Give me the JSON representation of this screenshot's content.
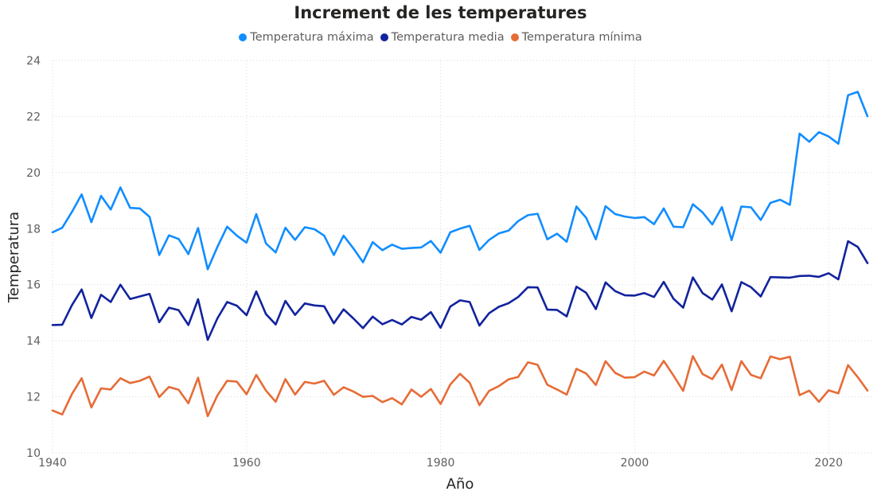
{
  "chart_data": {
    "type": "line",
    "title": "Increment de les temperatures",
    "xlabel": "Año",
    "ylabel": "Temperatura",
    "xlim": [
      1940,
      2024
    ],
    "ylim": [
      10,
      24
    ],
    "xticks": [
      1940,
      1960,
      1980,
      2000,
      2020
    ],
    "yticks": [
      10,
      12,
      14,
      16,
      18,
      20,
      22,
      24
    ],
    "grid": true,
    "legend_position": "top-center",
    "x": [
      1940,
      1941,
      1942,
      1943,
      1944,
      1945,
      1946,
      1947,
      1948,
      1949,
      1950,
      1951,
      1952,
      1953,
      1954,
      1955,
      1956,
      1957,
      1958,
      1959,
      1960,
      1961,
      1962,
      1963,
      1964,
      1965,
      1966,
      1967,
      1968,
      1969,
      1970,
      1971,
      1972,
      1973,
      1974,
      1975,
      1976,
      1977,
      1978,
      1979,
      1980,
      1981,
      1982,
      1983,
      1984,
      1985,
      1986,
      1987,
      1988,
      1989,
      1990,
      1991,
      1992,
      1993,
      1994,
      1995,
      1996,
      1997,
      1998,
      1999,
      2000,
      2001,
      2002,
      2003,
      2004,
      2005,
      2006,
      2007,
      2008,
      2009,
      2010,
      2011,
      2012,
      2013,
      2014,
      2015,
      2016,
      2017,
      2018,
      2019,
      2020,
      2021,
      2022,
      2023,
      2024
    ],
    "series": [
      {
        "name": "Temperatura máxima",
        "color": "#118dff",
        "values": [
          17.87,
          18.03,
          18.6,
          19.22,
          18.23,
          19.17,
          18.68,
          19.47,
          18.74,
          18.72,
          18.42,
          17.06,
          17.76,
          17.63,
          17.09,
          18.02,
          16.55,
          17.35,
          18.07,
          17.75,
          17.5,
          18.52,
          17.47,
          17.15,
          18.03,
          17.6,
          18.05,
          17.98,
          17.75,
          17.06,
          17.75,
          17.3,
          16.8,
          17.52,
          17.23,
          17.43,
          17.28,
          17.31,
          17.33,
          17.56,
          17.14,
          17.87,
          18.0,
          18.1,
          17.24,
          17.6,
          17.83,
          17.93,
          18.27,
          18.48,
          18.53,
          17.62,
          17.82,
          17.53,
          18.79,
          18.39,
          17.62,
          18.8,
          18.52,
          18.43,
          18.38,
          18.41,
          18.16,
          18.72,
          18.07,
          18.05,
          18.87,
          18.58,
          18.15,
          18.77,
          17.59,
          18.79,
          18.76,
          18.31,
          18.92,
          19.03,
          18.85,
          21.39,
          21.1,
          21.44,
          21.29,
          21.03,
          22.76,
          22.88,
          22.01
        ]
      },
      {
        "name": "Temperatura media",
        "color": "#12239e",
        "values": [
          14.56,
          14.57,
          15.27,
          15.83,
          14.81,
          15.64,
          15.38,
          16.0,
          15.49,
          15.58,
          15.67,
          14.66,
          15.18,
          15.09,
          14.56,
          15.48,
          14.03,
          14.8,
          15.38,
          15.25,
          14.91,
          15.76,
          14.95,
          14.58,
          15.42,
          14.92,
          15.33,
          15.26,
          15.23,
          14.62,
          15.12,
          14.8,
          14.45,
          14.86,
          14.59,
          14.74,
          14.58,
          14.85,
          14.75,
          15.02,
          14.46,
          15.22,
          15.44,
          15.38,
          14.54,
          14.98,
          15.21,
          15.34,
          15.56,
          15.91,
          15.9,
          15.11,
          15.1,
          14.87,
          15.93,
          15.71,
          15.13,
          16.08,
          15.77,
          15.62,
          15.61,
          15.7,
          15.56,
          16.1,
          15.5,
          15.18,
          16.26,
          15.7,
          15.47,
          16.01,
          15.05,
          16.09,
          15.91,
          15.58,
          16.27,
          16.26,
          16.25,
          16.31,
          16.32,
          16.28,
          16.41,
          16.19,
          17.55,
          17.35,
          16.77
        ]
      },
      {
        "name": "Temperatura mínima",
        "color": "#e66c37",
        "values": [
          11.51,
          11.37,
          12.1,
          12.66,
          11.62,
          12.3,
          12.26,
          12.66,
          12.49,
          12.57,
          12.72,
          11.99,
          12.35,
          12.25,
          11.77,
          12.68,
          11.31,
          12.05,
          12.57,
          12.54,
          12.09,
          12.78,
          12.22,
          11.82,
          12.63,
          12.08,
          12.53,
          12.47,
          12.57,
          12.07,
          12.34,
          12.19,
          12.0,
          12.03,
          11.81,
          11.95,
          11.73,
          12.26,
          12.0,
          12.28,
          11.74,
          12.44,
          12.82,
          12.5,
          11.7,
          12.21,
          12.38,
          12.62,
          12.71,
          13.23,
          13.14,
          12.43,
          12.26,
          12.08,
          13.0,
          12.83,
          12.42,
          13.27,
          12.85,
          12.68,
          12.7,
          12.9,
          12.76,
          13.28,
          12.76,
          12.21,
          13.45,
          12.81,
          12.63,
          13.15,
          12.24,
          13.27,
          12.78,
          12.66,
          13.44,
          13.34,
          13.43,
          12.06,
          12.22,
          11.82,
          12.23,
          12.12,
          13.13,
          12.7,
          12.22
        ]
      }
    ]
  }
}
